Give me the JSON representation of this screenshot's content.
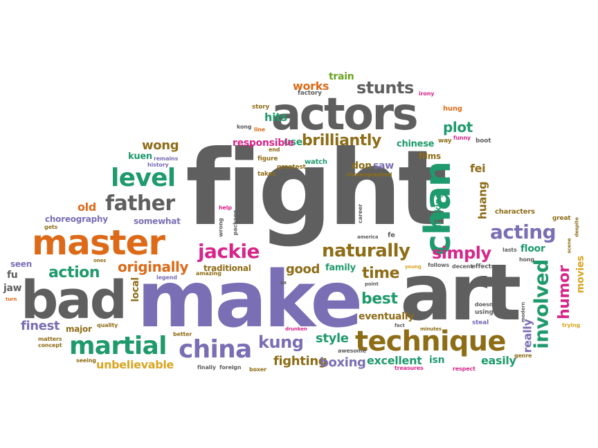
{
  "words": [
    "fight",
    "make",
    "art",
    "bad",
    "actors",
    "master",
    "chan",
    "technique",
    "martial",
    "china",
    "kung",
    "level",
    "father",
    "stunts",
    "jackie",
    "naturally",
    "brilliantly",
    "acting",
    "involved",
    "humor",
    "simply",
    "plot",
    "action",
    "originally",
    "best",
    "style",
    "fighting",
    "boxing",
    "excellent",
    "time",
    "wong",
    "good",
    "finest",
    "unbelievable",
    "eventually",
    "easily",
    "really",
    "movies",
    "fei",
    "huang",
    "old",
    "choreography",
    "somewhat",
    "seen",
    "jaw",
    "fu",
    "major",
    "local",
    "works",
    "train",
    "hits",
    "use",
    "responsible",
    "chinese",
    "films",
    "kuen",
    "history",
    "remains",
    "don",
    "saw",
    "drinking",
    "traditional",
    "family",
    "floor",
    "characters",
    "great",
    "hung",
    "funny",
    "boot",
    "way",
    "irony",
    "factory",
    "story",
    "kong",
    "line",
    "end",
    "figure",
    "takes",
    "greatest",
    "watch",
    "choreographed",
    "career",
    "package",
    "wrong",
    "help",
    "gets",
    "ones",
    "legend",
    "amazing",
    "point",
    "ax",
    "young",
    "follows",
    "decent",
    "effects",
    "lasts",
    "hong",
    "scene",
    "despite",
    "trying",
    "steal",
    "doesn",
    "modern",
    "genre",
    "respect",
    "treasures",
    "isn",
    "minutes",
    "fact",
    "drunken",
    "awesome",
    "foreign",
    "finally",
    "boxer",
    "seeing",
    "matters",
    "concept",
    "better",
    "quality",
    "turn",
    "fe",
    "america",
    "using",
    "fu"
  ]
}
